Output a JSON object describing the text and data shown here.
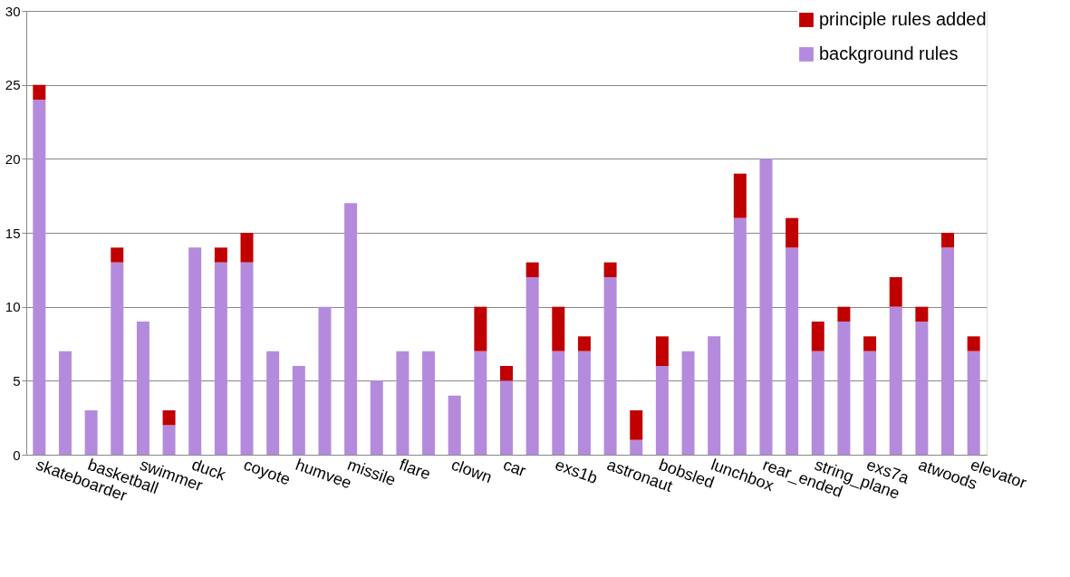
{
  "chart_data": {
    "type": "bar",
    "stacked": true,
    "categories": [
      "skateboarder",
      null,
      "basketball",
      null,
      "swimmer",
      null,
      "duck",
      null,
      "coyote",
      null,
      "humvee",
      null,
      "missile",
      null,
      "flare",
      null,
      "clown",
      null,
      "car",
      null,
      "exs1b",
      null,
      "astronaut",
      null,
      "bobsled",
      null,
      "lunchbox",
      null,
      "rear_ended",
      null,
      "string_plane",
      null,
      "exs7a",
      null,
      "atwoods",
      null,
      "elevator"
    ],
    "series": [
      {
        "name": "background rules",
        "color": "#b48bdc",
        "values": [
          24,
          7,
          3,
          13,
          9,
          2,
          14,
          13,
          13,
          7,
          6,
          10,
          17,
          5,
          7,
          7,
          4,
          7,
          5,
          12,
          7,
          7,
          12,
          1,
          6,
          7,
          8,
          16,
          20,
          14,
          7,
          9,
          7,
          10,
          9,
          14,
          7
        ]
      },
      {
        "name": "principle rules added",
        "color": "#c00000",
        "values": [
          1,
          0,
          0,
          1,
          0,
          1,
          0,
          1,
          2,
          0,
          0,
          0,
          0,
          0,
          0,
          0,
          0,
          3,
          1,
          1,
          3,
          1,
          1,
          2,
          2,
          0,
          0,
          3,
          0,
          2,
          2,
          1,
          1,
          2,
          1,
          1,
          1
        ]
      }
    ],
    "ylim": [
      0,
      30
    ],
    "yticks": [
      0,
      5,
      10,
      15,
      20,
      25,
      30
    ],
    "grid": "y",
    "legend": "top right"
  }
}
